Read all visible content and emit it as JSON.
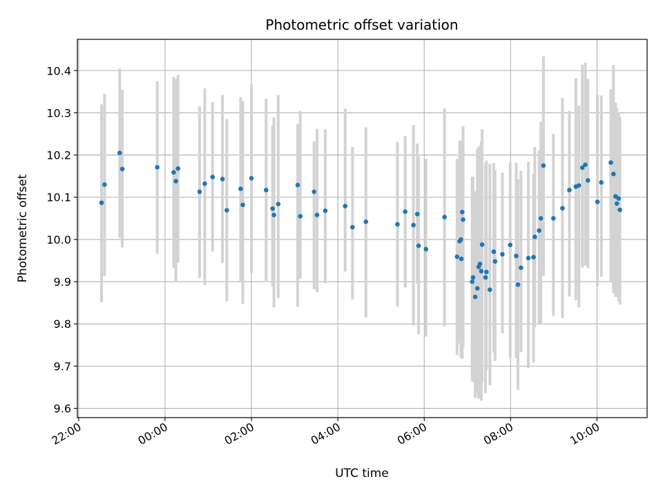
{
  "chart_data": {
    "type": "scatter",
    "title": "Photometric offset variation",
    "xlabel": "UTC time",
    "ylabel": "Photometric offset",
    "x_unit": "UTC hour",
    "xlim": [
      21.97,
      35.16
    ],
    "ylim": [
      9.578,
      10.474
    ],
    "grid": true,
    "x_ticks": [
      {
        "value": 22,
        "label": "22:00"
      },
      {
        "value": 24,
        "label": "00:00"
      },
      {
        "value": 26,
        "label": "02:00"
      },
      {
        "value": 28,
        "label": "04:00"
      },
      {
        "value": 30,
        "label": "06:00"
      },
      {
        "value": 32,
        "label": "08:00"
      },
      {
        "value": 34,
        "label": "10:00"
      }
    ],
    "y_ticks": [
      {
        "value": 9.6,
        "label": "9.6"
      },
      {
        "value": 9.7,
        "label": "9.7"
      },
      {
        "value": 9.8,
        "label": "9.8"
      },
      {
        "value": 9.9,
        "label": "9.9"
      },
      {
        "value": 10.0,
        "label": "10.0"
      },
      {
        "value": 10.1,
        "label": "10.1"
      },
      {
        "value": 10.2,
        "label": "10.2"
      },
      {
        "value": 10.3,
        "label": "10.3"
      },
      {
        "value": 10.4,
        "label": "10.4"
      }
    ],
    "colors": {
      "point": "#1f77b4",
      "errorbar": "#d3d3d3",
      "grid": "#b0b0b0"
    },
    "series": [
      {
        "x": [
          22.53,
          22.6,
          22.95,
          23.01,
          23.82,
          24.2,
          24.25,
          24.3,
          24.8,
          24.92,
          25.1,
          25.33,
          25.43,
          25.75,
          25.8,
          26.0,
          26.34,
          26.49,
          26.52,
          26.62,
          27.07,
          27.13,
          27.45,
          27.52,
          27.71,
          28.17,
          28.34,
          28.65,
          29.38,
          29.56,
          29.75,
          29.84,
          29.87,
          30.04,
          30.47,
          30.76,
          30.82,
          30.85,
          30.86,
          30.88,
          30.9,
          31.11,
          31.13,
          31.18,
          31.23,
          31.26,
          31.29,
          31.32,
          31.34,
          31.42,
          31.44,
          31.52,
          31.61,
          31.64,
          31.81,
          31.99,
          32.13,
          32.17,
          32.24,
          32.41,
          32.53,
          32.56,
          32.66,
          32.7,
          32.76,
          32.99,
          33.2,
          33.36,
          33.51,
          33.58,
          33.66,
          33.73,
          33.79,
          34.01,
          34.1,
          34.32,
          34.38,
          34.43,
          34.46,
          34.5,
          34.53
        ],
        "y": [
          10.087,
          10.13,
          10.205,
          10.167,
          10.171,
          10.159,
          10.138,
          10.168,
          10.113,
          10.132,
          10.148,
          10.143,
          10.069,
          10.12,
          10.082,
          10.145,
          10.117,
          10.073,
          10.058,
          10.084,
          10.129,
          10.055,
          10.113,
          10.058,
          10.068,
          10.079,
          10.029,
          10.042,
          10.036,
          10.066,
          10.034,
          10.06,
          9.985,
          9.977,
          10.053,
          9.959,
          9.996,
          10.0,
          9.954,
          10.065,
          10.047,
          9.9,
          9.91,
          9.864,
          9.884,
          9.935,
          9.942,
          9.925,
          9.988,
          9.91,
          9.923,
          9.881,
          9.971,
          9.948,
          9.965,
          9.987,
          9.961,
          9.893,
          9.933,
          9.956,
          9.958,
          10.006,
          10.021,
          10.05,
          10.175,
          10.05,
          10.074,
          10.117,
          10.125,
          10.128,
          10.17,
          10.177,
          10.14,
          10.089,
          10.135,
          10.182,
          10.155,
          10.102,
          10.085,
          10.097,
          10.07
        ],
        "err_low": [
          9.851,
          9.913,
          10.004,
          9.981,
          9.966,
          9.933,
          9.9,
          9.945,
          9.909,
          9.892,
          9.971,
          9.944,
          9.853,
          9.898,
          9.848,
          9.92,
          9.899,
          9.889,
          9.839,
          9.861,
          9.841,
          9.907,
          9.882,
          9.875,
          9.896,
          9.924,
          9.858,
          9.815,
          9.841,
          9.886,
          9.796,
          9.895,
          9.775,
          9.77,
          9.794,
          9.726,
          9.754,
          9.72,
          9.751,
          9.717,
          9.745,
          9.665,
          9.663,
          9.625,
          9.635,
          9.623,
          9.64,
          9.618,
          9.661,
          9.636,
          9.691,
          9.655,
          9.732,
          9.712,
          9.778,
          9.72,
          9.719,
          9.644,
          9.733,
          9.696,
          9.708,
          9.792,
          9.798,
          9.802,
          9.914,
          9.819,
          9.813,
          9.865,
          9.856,
          9.839,
          9.933,
          9.938,
          9.932,
          9.889,
          9.912,
          9.898,
          9.873,
          9.864,
          9.864,
          9.854,
          9.846
        ],
        "err_high": [
          10.32,
          10.345,
          10.405,
          10.355,
          10.375,
          10.385,
          10.38,
          10.39,
          10.315,
          10.358,
          10.325,
          10.342,
          10.285,
          10.337,
          10.327,
          10.368,
          10.333,
          10.27,
          10.289,
          10.342,
          10.273,
          10.305,
          10.232,
          10.262,
          10.261,
          10.31,
          10.219,
          10.266,
          10.231,
          10.245,
          10.271,
          10.227,
          10.197,
          10.191,
          10.31,
          10.191,
          10.233,
          10.235,
          10.211,
          10.231,
          10.268,
          10.148,
          10.149,
          10.114,
          10.214,
          10.22,
          10.214,
          10.232,
          10.261,
          10.181,
          10.187,
          10.179,
          10.181,
          10.164,
          10.158,
          10.181,
          10.182,
          10.143,
          10.163,
          10.184,
          10.155,
          10.219,
          10.211,
          10.279,
          10.434,
          10.25,
          10.335,
          10.305,
          10.382,
          10.317,
          10.414,
          10.419,
          10.38,
          10.343,
          10.341,
          10.356,
          10.413,
          10.324,
          10.311,
          10.301,
          10.29
        ]
      }
    ]
  }
}
